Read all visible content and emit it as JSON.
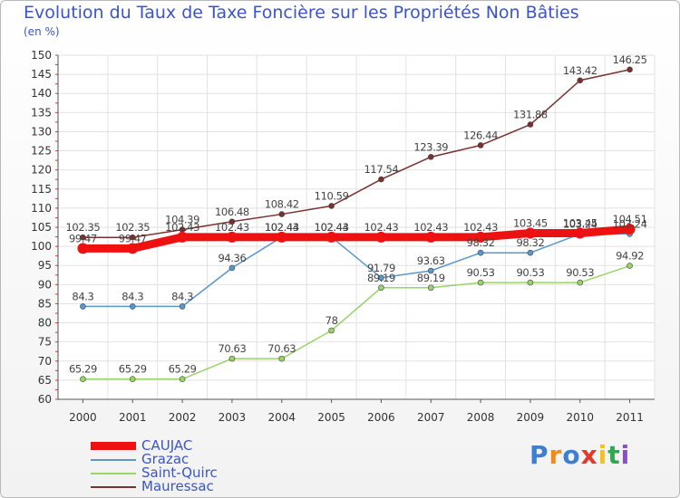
{
  "title": "Evolution du Taux de Taxe Foncière sur les Propriétés Non Bâties",
  "unit": "(en %)",
  "logo": {
    "text": "Proxiti",
    "colors": [
      "#3d7fd1",
      "#f08a1a",
      "#3d7fd1",
      "#e03a2a",
      "#f3c21e",
      "#2fa84f",
      "#8a4fc7"
    ]
  },
  "chart_data": {
    "type": "line",
    "x": [
      "2000",
      "2001",
      "2002",
      "2003",
      "2004",
      "2005",
      "2006",
      "2007",
      "2008",
      "2009",
      "2010",
      "2011"
    ],
    "ylim": [
      60,
      150
    ],
    "yticks": [
      60,
      65,
      70,
      75,
      80,
      85,
      90,
      95,
      100,
      105,
      110,
      115,
      120,
      125,
      130,
      135,
      140,
      145,
      150
    ],
    "grid": true,
    "legend_position": "bottom-left",
    "series": [
      {
        "name": "CAUJAC",
        "color": "#ee1111",
        "values": [
          99.47,
          99.47,
          102.43,
          102.43,
          102.43,
          102.43,
          102.43,
          102.43,
          102.43,
          103.45,
          103.45,
          104.51
        ],
        "labels": [
          "99.47",
          "99.47",
          "102.43",
          "102.43",
          "102.43",
          "102.43",
          "102.43",
          "102.43",
          "102.43",
          "103.45",
          "103.45",
          "104.51"
        ]
      },
      {
        "name": "Grazac",
        "color": "#5b97cc",
        "values": [
          84.3,
          84.3,
          84.3,
          94.36,
          102.44,
          102.44,
          91.79,
          93.63,
          98.32,
          98.32,
          103.24,
          103.24
        ],
        "labels": [
          "84.3",
          "84.3",
          "84.3",
          "94.36",
          "102.44",
          "102.44",
          "91.79",
          "93.63",
          "98.32",
          "98.32",
          "103.24",
          "103.24"
        ]
      },
      {
        "name": "Saint-Quirc",
        "color": "#99d466",
        "values": [
          65.29,
          65.29,
          65.29,
          70.63,
          70.63,
          78,
          89.19,
          89.19,
          90.53,
          90.53,
          90.53,
          94.92
        ],
        "labels": [
          "65.29",
          "65.29",
          "65.29",
          "70.63",
          "70.63",
          "78",
          "89.19",
          "89.19",
          "90.53",
          "90.53",
          "90.53",
          "94.92"
        ]
      },
      {
        "name": "Mauressac",
        "color": "#7a3030",
        "values": [
          102.35,
          102.35,
          104.39,
          106.48,
          108.42,
          110.59,
          117.54,
          123.39,
          126.44,
          131.88,
          143.42,
          146.25
        ],
        "labels": [
          "102.35",
          "102.35",
          "104.39",
          "106.48",
          "108.42",
          "110.59",
          "117.54",
          "123.39",
          "126.44",
          "131.88",
          "143.42",
          "146.25"
        ]
      }
    ]
  }
}
